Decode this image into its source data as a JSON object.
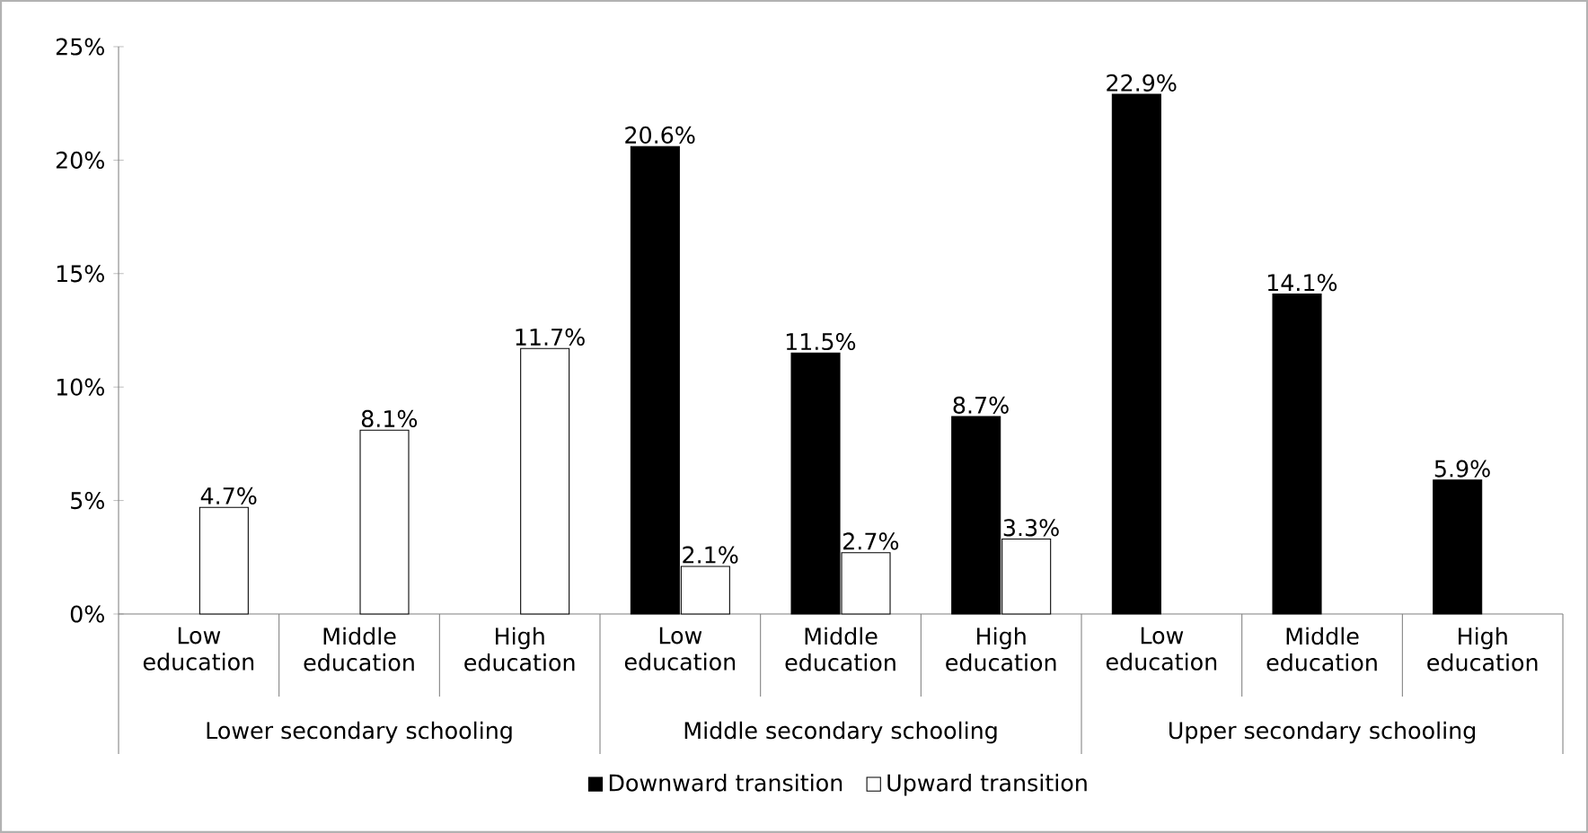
{
  "chart_data": {
    "type": "bar",
    "categories": [
      "Low education",
      "Middle education",
      "High education",
      "Low education",
      "Middle education",
      "High education",
      "Low education",
      "Middle education",
      "High education"
    ],
    "annotations": [
      "Lower secondary schooling",
      "Middle secondary schooling",
      "Upper secondary schooling"
    ],
    "series": [
      {
        "name": "Downward transition",
        "color": "#000000",
        "values": [
          null,
          null,
          null,
          20.6,
          11.5,
          8.7,
          22.9,
          14.1,
          5.9
        ],
        "value_labels": [
          null,
          null,
          null,
          "20.6%",
          "11.5%",
          "8.7%",
          "22.9%",
          "14.1%",
          "5.9%"
        ]
      },
      {
        "name": "Upward transition",
        "color": "#ffffff",
        "values": [
          4.7,
          8.1,
          11.7,
          2.1,
          2.7,
          3.3,
          null,
          null,
          null
        ],
        "value_labels": [
          "4.7%",
          "8.1%",
          "11.7%",
          "2.1%",
          "2.7%",
          "3.3%",
          null,
          null,
          null
        ]
      }
    ],
    "ylim": [
      0,
      25
    ],
    "yticks": [
      {
        "value": 0,
        "label": "0%"
      },
      {
        "value": 5,
        "label": "5%"
      },
      {
        "value": 10,
        "label": "10%"
      },
      {
        "value": 15,
        "label": "15%"
      },
      {
        "value": 20,
        "label": "20%"
      },
      {
        "value": 25,
        "label": "25%"
      }
    ],
    "legend": "bottom",
    "grid": false
  }
}
